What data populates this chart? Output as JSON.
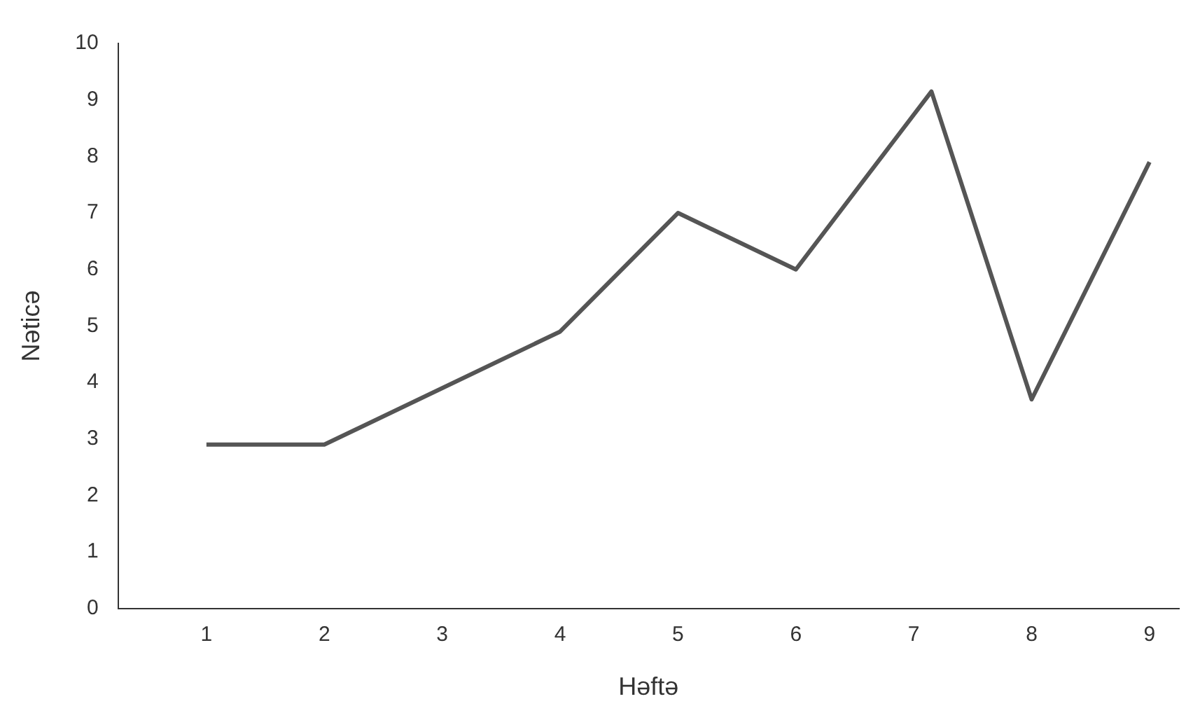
{
  "chart_data": {
    "type": "line",
    "xlabel": "Həftə",
    "ylabel": "Nəticə",
    "x": [
      1,
      2,
      4,
      5,
      6,
      7.15,
      8,
      9
    ],
    "series": [
      {
        "color": "#555555",
        "values": [
          2.9,
          2.9,
          4.9,
          7.0,
          6.0,
          9.15,
          3.7,
          7.9
        ]
      }
    ],
    "xlim": [
      0.25,
      9.25
    ],
    "xticks": [
      1,
      2,
      3,
      4,
      5,
      6,
      7,
      8,
      9
    ],
    "ylim": [
      0,
      10
    ],
    "yticks": [
      0,
      1,
      2,
      3,
      4,
      5,
      6,
      7,
      8,
      9,
      10
    ],
    "grid": false,
    "legend": false,
    "marker": "none",
    "line_style": "solid"
  }
}
